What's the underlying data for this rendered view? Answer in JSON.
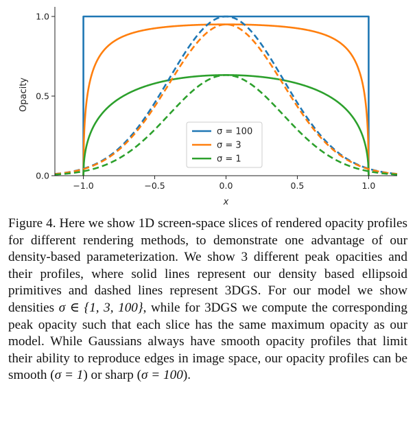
{
  "chart_data": {
    "type": "line",
    "xlabel": "x",
    "ylabel": "Opacity",
    "xlim": [
      -1.2,
      1.2
    ],
    "ylim": [
      0,
      1.0
    ],
    "xticks": [
      "−1.0",
      "−0.5",
      "0.0",
      "0.5",
      "1.0"
    ],
    "xtick_values": [
      -1.0,
      -0.5,
      0.0,
      0.5,
      1.0
    ],
    "yticks": [
      "0.0",
      "0.5",
      "1.0"
    ],
    "ytick_values": [
      0.0,
      0.5,
      1.0
    ],
    "legend_placement": "lower-center",
    "legend": [
      {
        "label": "σ = 100",
        "color": "#1f77b4"
      },
      {
        "label": "σ = 3",
        "color": "#ff7f0e"
      },
      {
        "label": "σ = 1",
        "color": "#2ca02c"
      }
    ],
    "series": [
      {
        "sigma": 100,
        "style": "solid",
        "color": "#1f77b4",
        "peak": 1.0
      },
      {
        "sigma": 3,
        "style": "solid",
        "color": "#ff7f0e",
        "peak": 0.95
      },
      {
        "sigma": 1,
        "style": "solid",
        "color": "#2ca02c",
        "peak": 0.632
      },
      {
        "sigma": 100,
        "style": "dashed",
        "color": "#1f77b4",
        "peak": 1.0
      },
      {
        "sigma": 3,
        "style": "dashed",
        "color": "#ff7f0e",
        "peak": 0.95
      },
      {
        "sigma": 1,
        "style": "dashed",
        "color": "#2ca02c",
        "peak": 0.632
      }
    ]
  },
  "caption": {
    "label": "Figure 4.",
    "text_1": " Here we show 1D screen-space slices of rendered opac­ity profiles for different rendering methods, to demonstrate one advantage of our density-based parameterization. We show 3 dif­ferent peak opacities and their profiles, where solid lines represent our density based ellipsoid primitives and dashed lines represent 3DGS. For our model we show densities ",
    "math_1": "σ ∈ {1, 3, 100}",
    "text_2": ", while for 3DGS we compute the corresponding peak opacity such that each slice has the same maximum opacity as our model. While Gaussians always have smooth opacity profiles that limit their abil­ity to reproduce edges in image space, our opacity profiles can be smooth (",
    "math_2": "σ = 1",
    "text_3": ") or sharp (",
    "math_3": "σ = 100",
    "text_4": ")."
  }
}
